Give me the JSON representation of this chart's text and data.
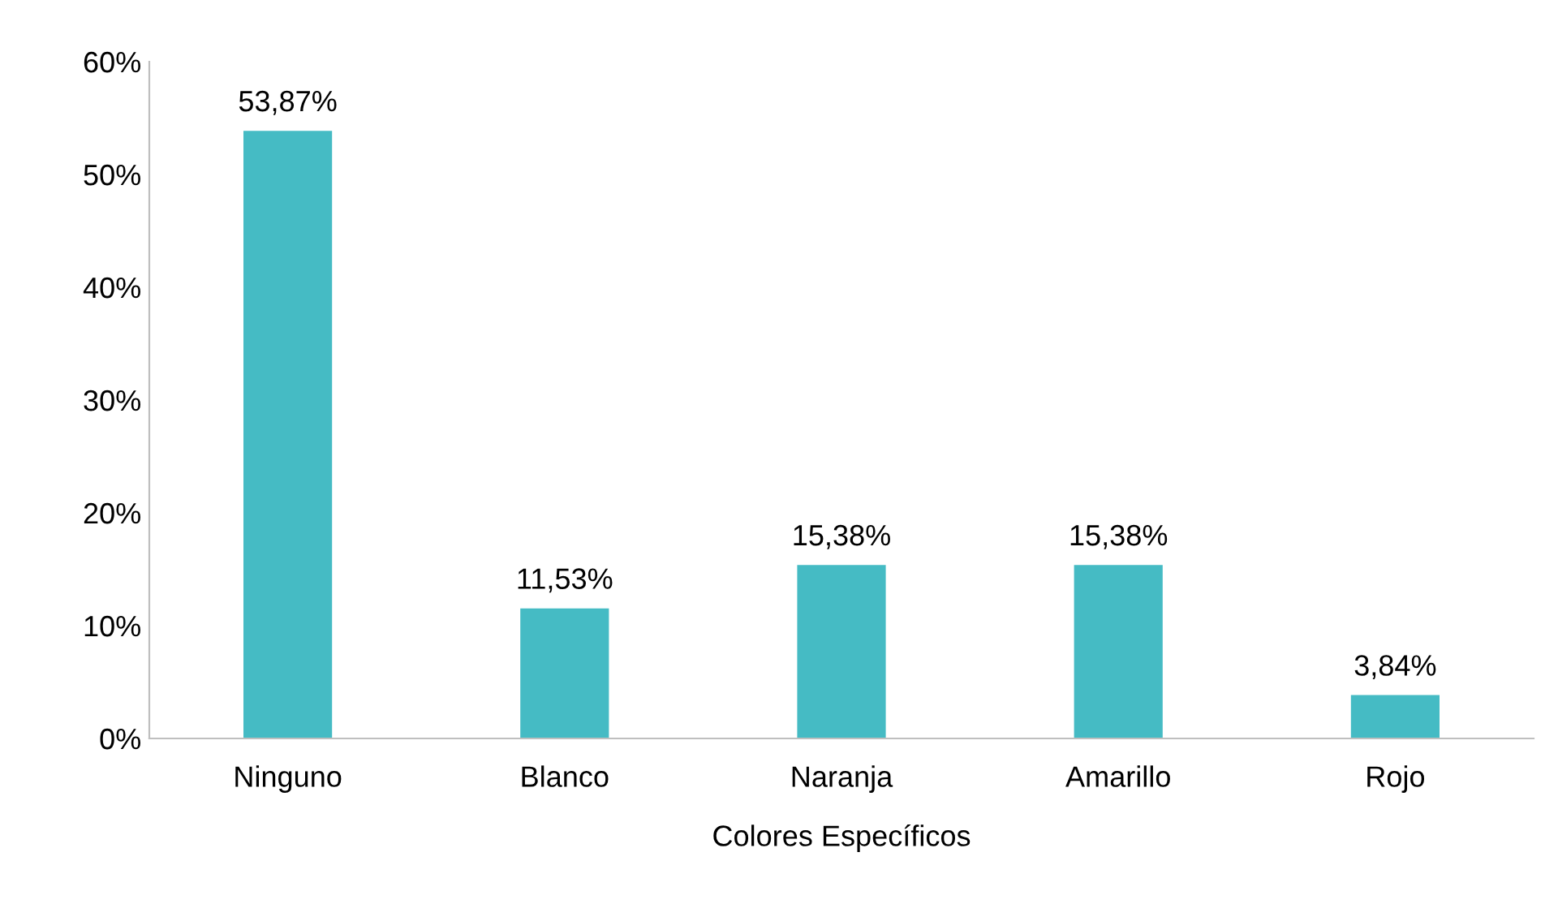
{
  "chart_data": {
    "type": "bar",
    "categories": [
      "Ninguno",
      "Blanco",
      "Naranja",
      "Amarillo",
      "Rojo"
    ],
    "values": [
      53.87,
      11.53,
      15.38,
      15.38,
      3.84
    ],
    "value_labels": [
      "53,87%",
      "11,53%",
      "15,38%",
      "15,38%",
      "3,84%"
    ],
    "color": "#45bbc4",
    "xlabel": "Colores Específicos",
    "ylim": [
      0,
      60
    ],
    "yticks": [
      {
        "value": 0,
        "label": "0%"
      },
      {
        "value": 10,
        "label": "10%"
      },
      {
        "value": 20,
        "label": "20%"
      },
      {
        "value": 30,
        "label": "30%"
      },
      {
        "value": 40,
        "label": "40%"
      },
      {
        "value": 50,
        "label": "50%"
      },
      {
        "value": 60,
        "label": "60%"
      }
    ],
    "grid": false,
    "legend": false
  }
}
